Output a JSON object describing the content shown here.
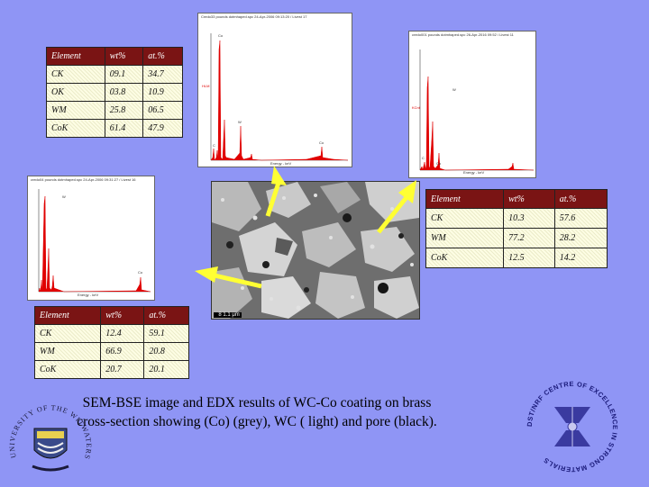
{
  "table_top": {
    "headers": [
      "Element",
      "wt%",
      "at.%"
    ],
    "rows": [
      [
        "CK",
        "09.1",
        "34.7"
      ],
      [
        "OK",
        "03.8",
        "10.9"
      ],
      [
        "WM",
        "25.8",
        "06.5"
      ],
      [
        "CoK",
        "61.4",
        "47.9"
      ]
    ]
  },
  "table_right": {
    "headers": [
      "Element",
      "wt%",
      "at.%"
    ],
    "rows": [
      [
        "CK",
        "10.3",
        "57.6"
      ],
      [
        "WM",
        "77.2",
        "28.2"
      ],
      [
        "CoK",
        "12.5",
        "14.2"
      ]
    ]
  },
  "table_left": {
    "headers": [
      "Element",
      "wt%",
      "at.%"
    ],
    "rows": [
      [
        "CK",
        "12.4",
        "59.1"
      ],
      [
        "WM",
        "66.9",
        "20.8"
      ],
      [
        "CoK",
        "20.7",
        "20.1"
      ]
    ]
  },
  "spectrum_top": {
    "header": "Credo33 pounds dotmhaped.spc 24-Apr-2006 09:13:20 / Livest 17",
    "xlabel": "Energy - keV"
  },
  "spectrum_right": {
    "header": "credo001 pounds dotmhaped.spc 26-Apr-2016 09:52 / Livest 11",
    "xlabel": "Energy - keV"
  },
  "spectrum_left": {
    "header": "credo04 pounds dotmhaped.spc 24-Apr-2006 09:31:27 / Livest 16",
    "xlabel": "Energy - keV"
  },
  "sem": {
    "scale": "  8 1.1 μm"
  },
  "caption": "SEM-BSE image and EDX results of WC-Co coating on brass cross-section showing (Co) (grey), WC ( light) and pore (black).",
  "logo_left": {
    "ring_text": "UNIVERSITY OF THE WITWATERSRAND"
  },
  "logo_right": {
    "ring_text": "DST/NRF CENTRE OF EXCELLENCE IN STRONG MATERIALS"
  },
  "colors": {
    "background": "#8f95f5",
    "table_header": "#7a1414",
    "arrow": "#ffff33",
    "spectrum": "#e00000"
  }
}
